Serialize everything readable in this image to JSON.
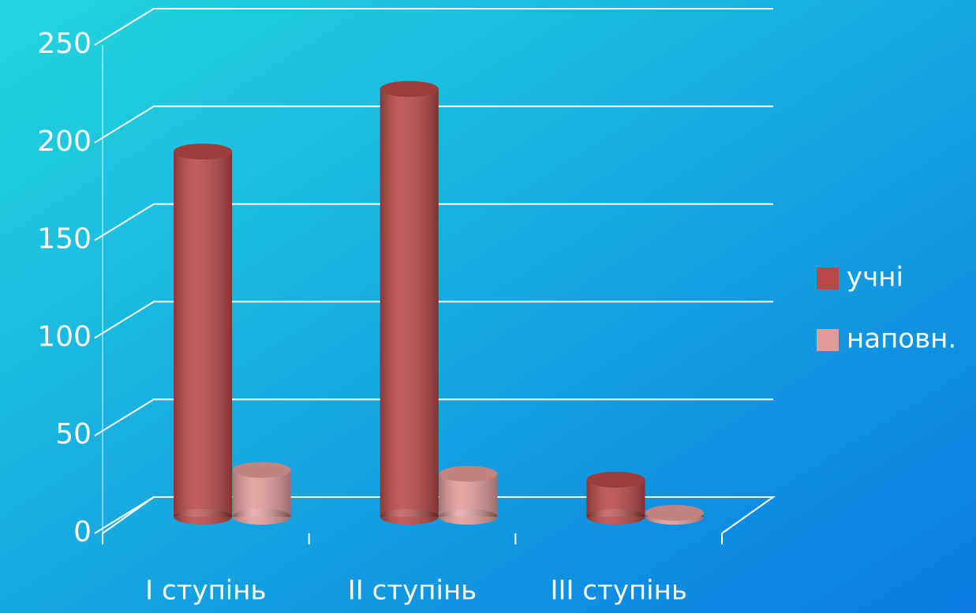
{
  "chart_data": {
    "type": "bar3d",
    "categories": [
      "I ступінь",
      "II ступінь",
      "III ступінь"
    ],
    "series": [
      {
        "name": "учні",
        "color": "#b84846",
        "values": [
          187,
          219,
          19
        ]
      },
      {
        "name": "наповн.",
        "color": "#e19b99",
        "values": [
          24,
          22,
          2
        ]
      }
    ],
    "ylim": [
      0,
      250
    ],
    "yticks": [
      0,
      50,
      100,
      150,
      200,
      250
    ],
    "grid": true,
    "legend": "right"
  }
}
